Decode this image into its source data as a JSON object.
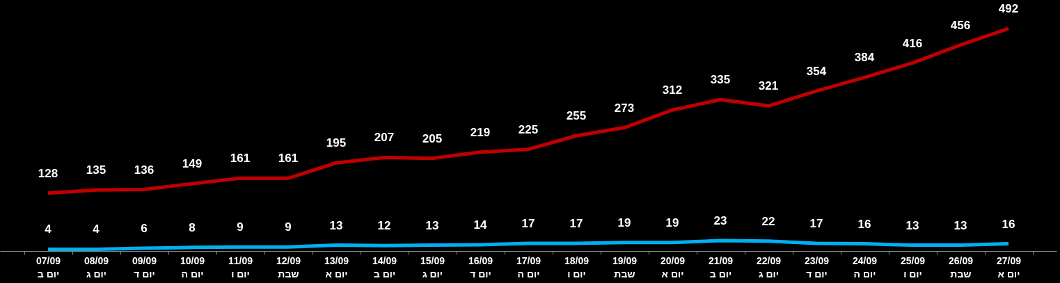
{
  "chart_data": {
    "type": "line",
    "categories": [
      "07/09\nיום ב",
      "08/09\nיום ג",
      "09/09\nיום ד",
      "10/09\nיום ה",
      "11/09\nיום ו",
      "12/09\nשבת",
      "13/09\nיום א",
      "14/09\nיום ב",
      "15/09\nיום ג",
      "16/09\nיום ד",
      "17/09\nיום ה",
      "18/09\nיום ו",
      "19/09\nשבת",
      "20/09\nיום א",
      "21/09\nיום ב",
      "22/09\nיום ג",
      "23/09\nיום ד",
      "24/09\nיום ה",
      "25/09\nיום ו",
      "26/09\nשבת",
      "27/09\nיום א"
    ],
    "series": [
      {
        "color": "#c00000",
        "values": [
          128,
          135,
          136,
          149,
          161,
          161,
          195,
          207,
          205,
          219,
          225,
          255,
          273,
          312,
          335,
          321,
          354,
          384,
          416,
          456,
          492
        ]
      },
      {
        "color": "#00b0f0",
        "values": [
          4,
          4,
          6,
          8,
          9,
          9,
          13,
          12,
          13,
          14,
          17,
          17,
          19,
          19,
          23,
          22,
          17,
          16,
          13,
          13,
          16
        ]
      }
    ],
    "data_labels": true,
    "tick_labels": "x",
    "grid": false,
    "marker": "none",
    "line_style": "solid"
  }
}
